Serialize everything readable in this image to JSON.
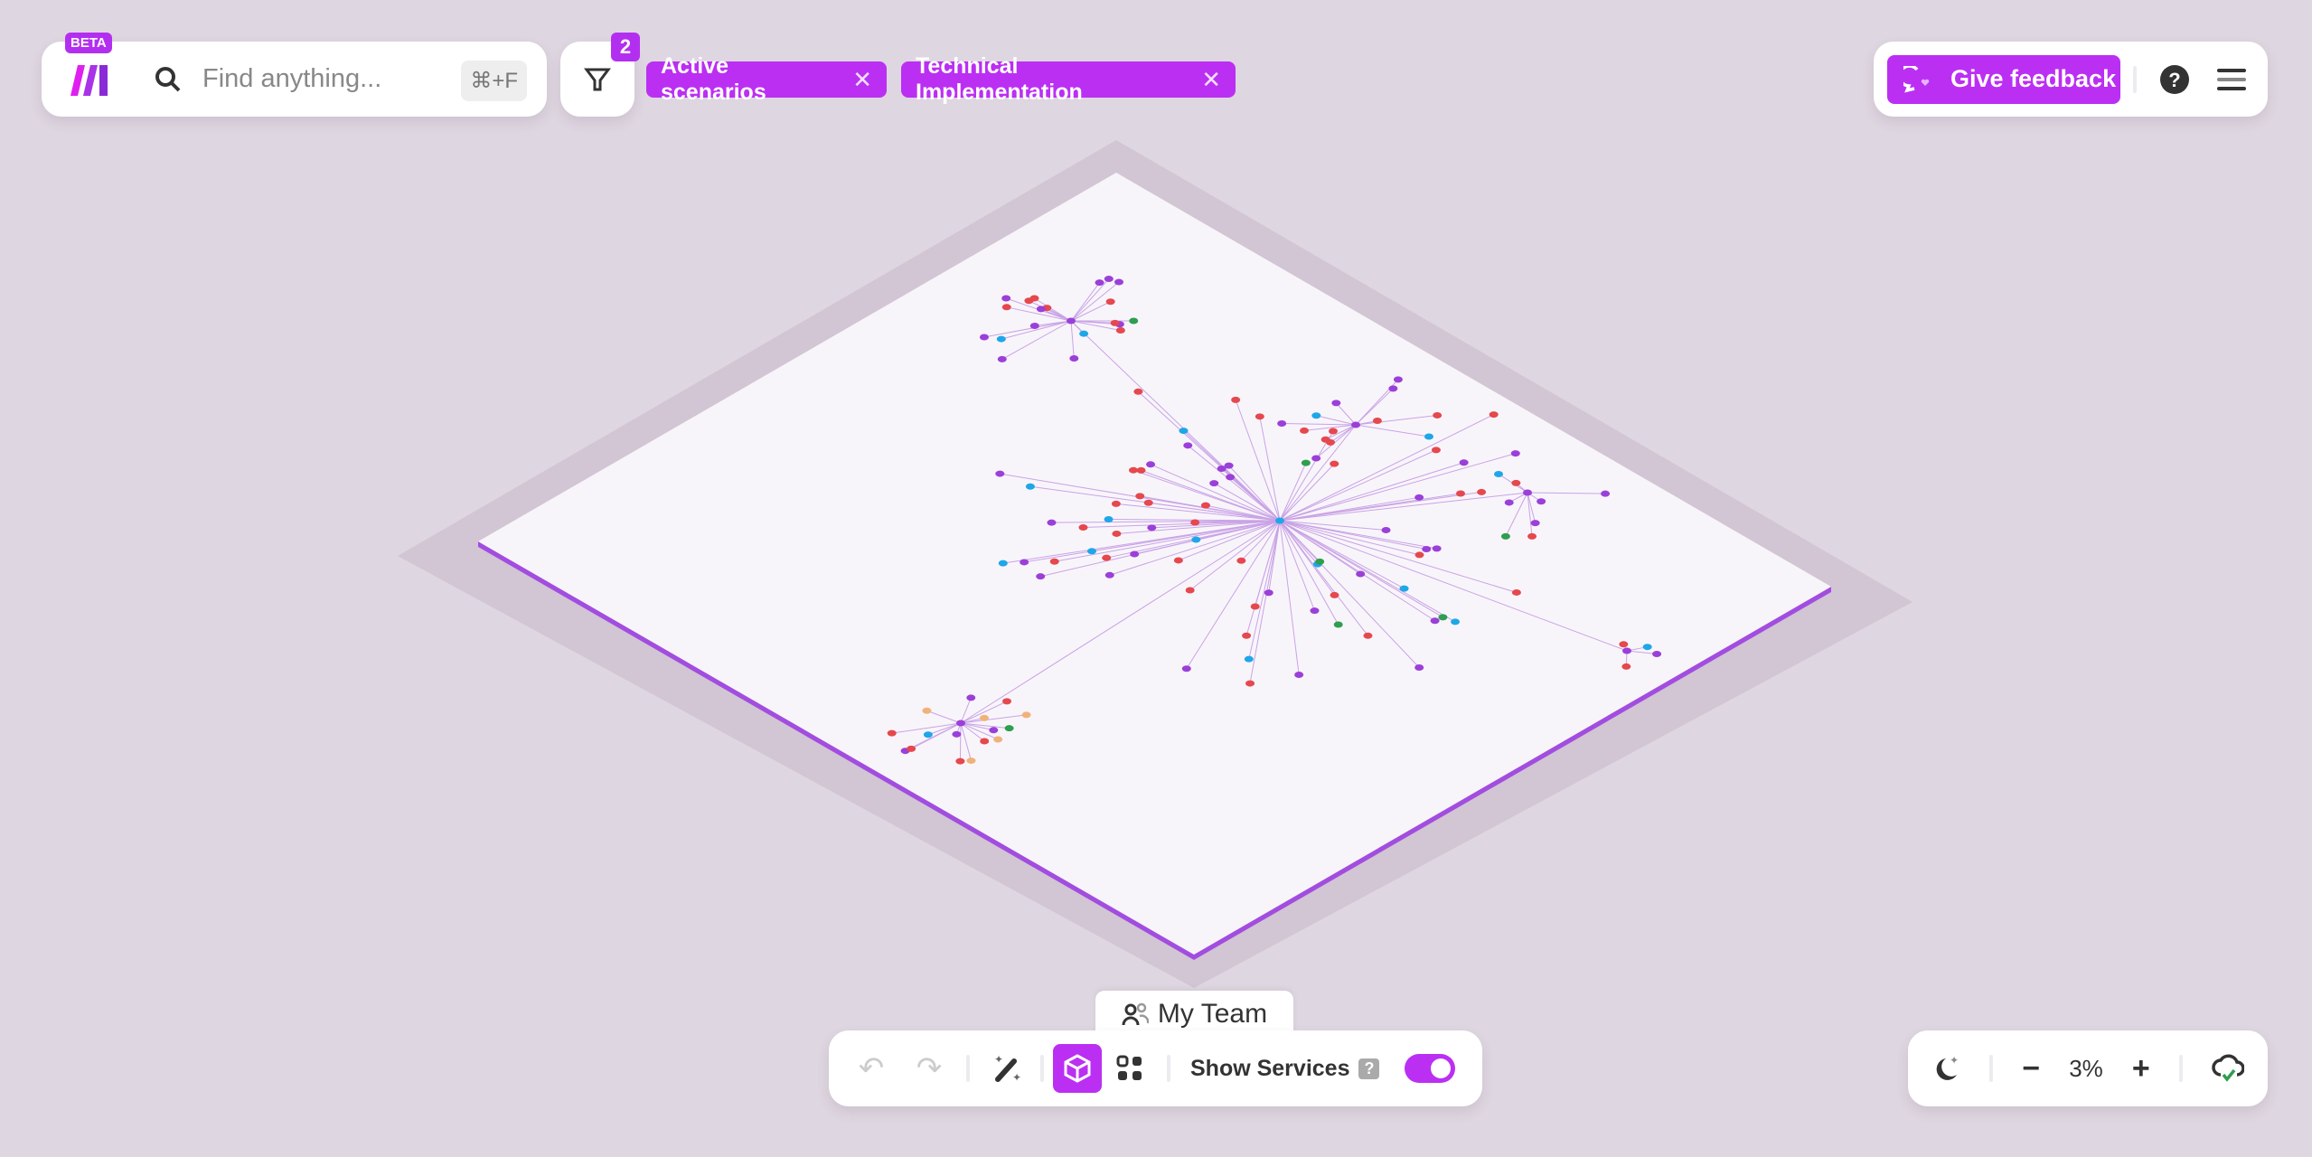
{
  "header": {
    "beta_label": "BETA",
    "search_placeholder": "Find anything...",
    "search_shortcut": "⌘+F",
    "filter_count": "2",
    "filters": [
      {
        "label": "Active scenarios"
      },
      {
        "label": "Technical Implementation"
      }
    ]
  },
  "top_right": {
    "feedback_label": "Give feedback"
  },
  "canvas": {
    "team_tab": "My Team"
  },
  "toolbar": {
    "show_services_label": "Show Services",
    "show_services_help": "?",
    "show_services_on": true
  },
  "zoom": {
    "level": "3%"
  },
  "colors": {
    "accent": "#bb2ff3",
    "background": "#ded6e0",
    "plate": "#f8f5fa",
    "node_red": "#e5484d",
    "node_purple": "#9b3fd9",
    "node_blue": "#1ea7e8",
    "node_green": "#2e9e4f",
    "node_orange": "#f0b27a"
  }
}
